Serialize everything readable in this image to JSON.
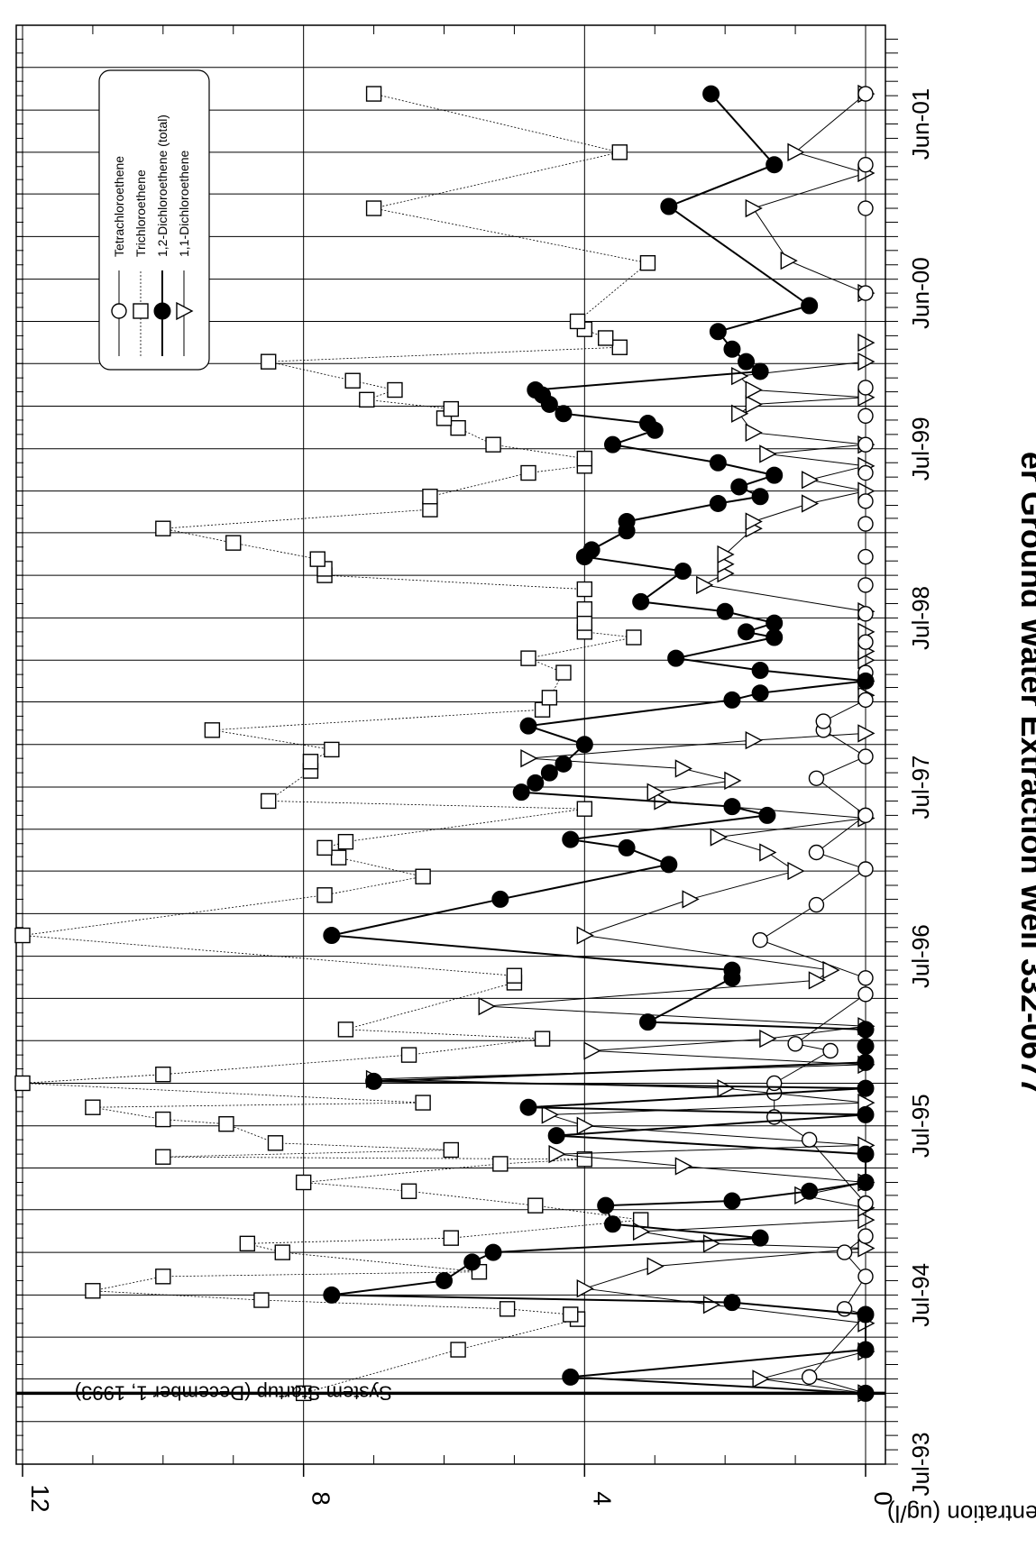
{
  "chart_data": {
    "type": "line",
    "title": "er Ground Water Extraction Well 332-0677",
    "ylabel": "Concentration (ug/l)",
    "xlabel": "",
    "ylim": [
      0,
      12
    ],
    "y_ticks": [
      0,
      4,
      8,
      12
    ],
    "xlim": [
      "1993-07-01",
      "2001-12-31"
    ],
    "x_tick_labels": [
      {
        "date": "1993-07-01",
        "label": "Jul-93"
      },
      {
        "date": "1994-07-01",
        "label": "Jul-94"
      },
      {
        "date": "1995-07-01",
        "label": "Jul-95"
      },
      {
        "date": "1996-07-01",
        "label": "Jul-96"
      },
      {
        "date": "1997-07-01",
        "label": "Jul-97"
      },
      {
        "date": "1998-07-01",
        "label": "Jul-98"
      },
      {
        "date": "1999-07-01",
        "label": "Jul-99"
      },
      {
        "date": "2000-06-01",
        "label": "Jun-00"
      },
      {
        "date": "2001-06-01",
        "label": "Jun-01"
      }
    ],
    "grid": true,
    "legend_position": "top-right",
    "annotation": {
      "text": "System Startup (December 1, 1993)",
      "date": "1993-12-01"
    },
    "series": [
      {
        "name": "Tetrachloroethene",
        "marker": "circle-open",
        "line": "solid",
        "points": [
          [
            "1993-12-01",
            0
          ],
          [
            "1994-01-05",
            0.8
          ],
          [
            "1994-05-20",
            0
          ],
          [
            "1994-06-01",
            0.3
          ],
          [
            "1994-08-10",
            0
          ],
          [
            "1994-10-01",
            0.3
          ],
          [
            "1994-11-05",
            0
          ],
          [
            "1995-01-15",
            0
          ],
          [
            "1995-06-01",
            0.8
          ],
          [
            "1995-07-20",
            1.3
          ],
          [
            "1995-09-10",
            1.3
          ],
          [
            "1995-10-01",
            1.3
          ],
          [
            "1995-12-10",
            0.5
          ],
          [
            "1995-12-25",
            1.0
          ],
          [
            "1996-04-10",
            0
          ],
          [
            "1996-05-15",
            0
          ],
          [
            "1996-08-05",
            1.5
          ],
          [
            "1996-10-20",
            0.7
          ],
          [
            "1997-01-05",
            0
          ],
          [
            "1997-02-10",
            0.7
          ],
          [
            "1997-05-01",
            0
          ],
          [
            "1997-07-20",
            0.7
          ],
          [
            "1997-09-05",
            0
          ],
          [
            "1997-11-01",
            0.6
          ],
          [
            "1997-11-20",
            0.6
          ],
          [
            "1998-01-05",
            0
          ],
          [
            "1998-03-05",
            0
          ],
          [
            "1998-05-10",
            0
          ],
          [
            "1998-07-10",
            0
          ],
          [
            "1998-09-10",
            0
          ],
          [
            "1998-11-10",
            0
          ],
          [
            "1999-01-20",
            0
          ],
          [
            "1999-03-10",
            0
          ],
          [
            "1999-05-10",
            0
          ],
          [
            "1999-07-10",
            0
          ],
          [
            "1999-09-10",
            0
          ],
          [
            "1999-11-10",
            0
          ],
          [
            "2000-06-01",
            0
          ],
          [
            "2000-12-01",
            0
          ],
          [
            "2001-03-05",
            0
          ],
          [
            "2001-08-05",
            0
          ]
        ]
      },
      {
        "name": "Trichloroethene",
        "marker": "square-open",
        "line": "dotted",
        "points": [
          [
            "1993-12-01",
            8.0
          ],
          [
            "1994-03-05",
            5.8
          ],
          [
            "1994-05-10",
            4.1
          ],
          [
            "1994-05-20",
            4.2
          ],
          [
            "1994-06-01",
            5.1
          ],
          [
            "1994-06-20",
            8.6
          ],
          [
            "1994-07-10",
            11.0
          ],
          [
            "1994-08-10",
            10.0
          ],
          [
            "1994-08-20",
            5.5
          ],
          [
            "1994-10-01",
            8.3
          ],
          [
            "1994-10-20",
            8.8
          ],
          [
            "1994-11-01",
            5.9
          ],
          [
            "1994-12-10",
            3.2
          ],
          [
            "1995-01-10",
            4.7
          ],
          [
            "1995-02-10",
            6.5
          ],
          [
            "1995-03-01",
            8.0
          ],
          [
            "1995-04-10",
            5.2
          ],
          [
            "1995-04-20",
            4.0
          ],
          [
            "1995-04-25",
            10.0
          ],
          [
            "1995-05-10",
            5.9
          ],
          [
            "1995-05-25",
            8.4
          ],
          [
            "1995-07-05",
            9.1
          ],
          [
            "1995-07-15",
            10.0
          ],
          [
            "1995-08-10",
            11.0
          ],
          [
            "1995-08-20",
            6.3
          ],
          [
            "1995-10-01",
            12.0
          ],
          [
            "1995-10-20",
            10.0
          ],
          [
            "1995-12-01",
            6.5
          ],
          [
            "1996-01-05",
            4.6
          ],
          [
            "1996-01-25",
            7.4
          ],
          [
            "1996-05-05",
            5.0
          ],
          [
            "1996-05-20",
            5.0
          ],
          [
            "1996-08-15",
            12.0
          ],
          [
            "1996-11-10",
            7.7
          ],
          [
            "1996-12-20",
            6.3
          ],
          [
            "1997-01-30",
            7.5
          ],
          [
            "1997-02-20",
            7.7
          ],
          [
            "1997-03-05",
            7.4
          ],
          [
            "1997-05-15",
            4.0
          ],
          [
            "1997-06-01",
            8.5
          ],
          [
            "1997-08-05",
            7.9
          ],
          [
            "1997-08-25",
            7.9
          ],
          [
            "1997-09-20",
            7.6
          ],
          [
            "1997-11-01",
            9.3
          ],
          [
            "1997-12-15",
            4.6
          ],
          [
            "1998-01-10",
            4.5
          ],
          [
            "1998-03-05",
            4.3
          ],
          [
            "1998-04-05",
            4.8
          ],
          [
            "1998-05-20",
            3.3
          ],
          [
            "1998-06-01",
            4.0
          ],
          [
            "1998-06-20",
            4.0
          ],
          [
            "1998-07-20",
            4.0
          ],
          [
            "1998-09-01",
            4.0
          ],
          [
            "1998-10-01",
            7.7
          ],
          [
            "1998-10-15",
            7.7
          ],
          [
            "1998-11-05",
            7.8
          ],
          [
            "1998-12-10",
            9.0
          ],
          [
            "1999-01-10",
            10.0
          ],
          [
            "1999-02-20",
            6.2
          ],
          [
            "1999-03-20",
            6.2
          ],
          [
            "1999-05-10",
            4.8
          ],
          [
            "1999-05-25",
            4.0
          ],
          [
            "1999-06-10",
            4.0
          ],
          [
            "1999-07-10",
            5.3
          ],
          [
            "1999-08-15",
            5.8
          ],
          [
            "1999-09-05",
            6.0
          ],
          [
            "1999-09-25",
            5.9
          ],
          [
            "1999-10-15",
            7.1
          ],
          [
            "1999-11-05",
            6.7
          ],
          [
            "1999-11-25",
            7.3
          ],
          [
            "2000-01-05",
            8.5
          ],
          [
            "2000-02-05",
            3.5
          ],
          [
            "2000-02-25",
            3.7
          ],
          [
            "2000-03-15",
            4.0
          ],
          [
            "2000-04-01",
            4.1
          ],
          [
            "2000-08-05",
            3.1
          ],
          [
            "2000-12-01",
            7.0
          ],
          [
            "2001-04-01",
            3.5
          ],
          [
            "2001-08-05",
            7.0
          ]
        ]
      },
      {
        "name": "1,2-Dichloroethene (total)",
        "marker": "circle-filled",
        "line": "solid-thick",
        "points": [
          [
            "1993-12-01",
            0
          ],
          [
            "1994-01-05",
            4.2
          ],
          [
            "1994-03-05",
            0
          ],
          [
            "1994-05-20",
            0
          ],
          [
            "1994-06-15",
            1.9
          ],
          [
            "1994-07-01",
            7.6
          ],
          [
            "1994-08-01",
            6.0
          ],
          [
            "1994-09-10",
            5.6
          ],
          [
            "1994-10-01",
            5.3
          ],
          [
            "1994-11-01",
            1.5
          ],
          [
            "1994-12-01",
            3.6
          ],
          [
            "1995-01-10",
            3.7
          ],
          [
            "1995-01-20",
            1.9
          ],
          [
            "1995-02-10",
            0.8
          ],
          [
            "1995-03-01",
            0
          ],
          [
            "1995-05-01",
            0
          ],
          [
            "1995-06-10",
            4.4
          ],
          [
            "1995-07-25",
            0
          ],
          [
            "1995-08-10",
            4.8
          ],
          [
            "1995-09-20",
            0
          ],
          [
            "1995-10-05",
            7.0
          ],
          [
            "1995-11-15",
            0
          ],
          [
            "1995-12-20",
            0
          ],
          [
            "1996-01-25",
            0
          ],
          [
            "1996-02-10",
            3.1
          ],
          [
            "1996-05-15",
            1.9
          ],
          [
            "1996-06-01",
            1.9
          ],
          [
            "1996-08-15",
            7.6
          ],
          [
            "1996-11-01",
            5.2
          ],
          [
            "1997-01-15",
            2.8
          ],
          [
            "1997-02-20",
            3.4
          ],
          [
            "1997-03-10",
            4.2
          ],
          [
            "1997-05-01",
            1.4
          ],
          [
            "1997-05-20",
            1.9
          ],
          [
            "1997-06-20",
            4.9
          ],
          [
            "1997-07-10",
            4.7
          ],
          [
            "1997-08-01",
            4.5
          ],
          [
            "1997-08-20",
            4.3
          ],
          [
            "1997-10-01",
            4.0
          ],
          [
            "1997-11-10",
            4.8
          ],
          [
            "1998-01-05",
            1.9
          ],
          [
            "1998-01-20",
            1.5
          ],
          [
            "1998-02-15",
            0
          ],
          [
            "1998-03-10",
            1.5
          ],
          [
            "1998-04-05",
            2.7
          ],
          [
            "1998-05-20",
            1.3
          ],
          [
            "1998-06-01",
            1.7
          ],
          [
            "1998-06-20",
            1.3
          ],
          [
            "1998-07-15",
            2.0
          ],
          [
            "1998-08-05",
            3.2
          ],
          [
            "1998-10-10",
            2.6
          ],
          [
            "1998-11-10",
            4.0
          ],
          [
            "1998-11-25",
            3.9
          ],
          [
            "1999-01-05",
            3.4
          ],
          [
            "1999-01-25",
            3.4
          ],
          [
            "1999-03-05",
            2.1
          ],
          [
            "1999-03-20",
            1.5
          ],
          [
            "1999-04-10",
            1.8
          ],
          [
            "1999-05-05",
            1.3
          ],
          [
            "1999-06-01",
            2.1
          ],
          [
            "1999-07-10",
            3.6
          ],
          [
            "1999-08-10",
            3.0
          ],
          [
            "1999-08-25",
            3.1
          ],
          [
            "1999-09-15",
            4.3
          ],
          [
            "1999-10-05",
            4.5
          ],
          [
            "1999-10-25",
            4.6
          ],
          [
            "1999-11-05",
            4.7
          ],
          [
            "1999-12-15",
            1.5
          ],
          [
            "2000-01-05",
            1.7
          ],
          [
            "2000-02-01",
            1.9
          ],
          [
            "2000-03-10",
            2.1
          ],
          [
            "2000-05-05",
            0.8
          ],
          [
            "2000-12-05",
            2.8
          ],
          [
            "2001-03-05",
            1.3
          ],
          [
            "2001-08-05",
            2.2
          ]
        ]
      },
      {
        "name": "1,1-Dichloroethene",
        "marker": "triangle-open",
        "line": "solid",
        "points": [
          [
            "1993-12-01",
            0
          ],
          [
            "1994-01-01",
            1.5
          ],
          [
            "1994-03-01",
            0
          ],
          [
            "1994-05-01",
            0
          ],
          [
            "1994-06-10",
            2.2
          ],
          [
            "1994-07-15",
            4.0
          ],
          [
            "1994-09-01",
            3.0
          ],
          [
            "1994-10-10",
            0
          ],
          [
            "1994-10-20",
            2.2
          ],
          [
            "1994-11-15",
            3.2
          ],
          [
            "1994-12-10",
            0
          ],
          [
            "1995-01-05",
            0
          ],
          [
            "1995-02-01",
            0.9
          ],
          [
            "1995-03-01",
            0
          ],
          [
            "1995-04-05",
            2.6
          ],
          [
            "1995-05-01",
            4.4
          ],
          [
            "1995-05-20",
            0
          ],
          [
            "1995-07-01",
            4.0
          ],
          [
            "1995-07-25",
            4.5
          ],
          [
            "1995-08-20",
            0
          ],
          [
            "1995-09-20",
            2.0
          ],
          [
            "1995-10-10",
            7.0
          ],
          [
            "1995-11-10",
            0
          ],
          [
            "1995-12-10",
            3.9
          ],
          [
            "1996-01-05",
            1.4
          ],
          [
            "1996-02-01",
            0
          ],
          [
            "1996-03-15",
            5.4
          ],
          [
            "1996-05-10",
            0.7
          ],
          [
            "1996-06-01",
            0.5
          ],
          [
            "1996-08-15",
            4.0
          ],
          [
            "1996-11-01",
            2.5
          ],
          [
            "1997-01-01",
            1.0
          ],
          [
            "1997-02-10",
            1.4
          ],
          [
            "1997-03-15",
            2.1
          ],
          [
            "1997-04-25",
            0
          ],
          [
            "1997-06-01",
            2.9
          ],
          [
            "1997-06-20",
            3.0
          ],
          [
            "1997-07-15",
            1.9
          ],
          [
            "1997-08-10",
            2.6
          ],
          [
            "1997-09-01",
            4.8
          ],
          [
            "1997-10-10",
            1.6
          ],
          [
            "1997-10-25",
            0
          ],
          [
            "1998-01-15",
            0
          ],
          [
            "1998-02-15",
            0
          ],
          [
            "1998-04-01",
            0
          ],
          [
            "1998-04-20",
            0
          ],
          [
            "1998-06-01",
            0
          ],
          [
            "1998-07-15",
            0
          ],
          [
            "1998-09-10",
            2.3
          ],
          [
            "1998-10-05",
            2.0
          ],
          [
            "1998-10-25",
            2.0
          ],
          [
            "1998-11-15",
            2.0
          ],
          [
            "1999-01-10",
            1.6
          ],
          [
            "1999-01-25",
            1.6
          ],
          [
            "1999-03-05",
            0.8
          ],
          [
            "1999-04-01",
            0
          ],
          [
            "1999-04-25",
            0.8
          ],
          [
            "1999-05-25",
            0
          ],
          [
            "1999-06-20",
            1.4
          ],
          [
            "1999-07-10",
            0
          ],
          [
            "1999-08-05",
            1.6
          ],
          [
            "1999-09-15",
            1.8
          ],
          [
            "1999-10-05",
            1.6
          ],
          [
            "1999-10-20",
            0
          ],
          [
            "1999-11-05",
            1.6
          ],
          [
            "1999-12-05",
            1.8
          ],
          [
            "2000-01-05",
            0
          ],
          [
            "2000-02-15",
            0
          ],
          [
            "2000-06-01",
            0
          ],
          [
            "2000-08-10",
            1.1
          ],
          [
            "2000-12-01",
            1.6
          ],
          [
            "2001-02-15",
            0
          ],
          [
            "2001-04-01",
            1.0
          ],
          [
            "2001-08-05",
            0
          ]
        ]
      }
    ]
  }
}
